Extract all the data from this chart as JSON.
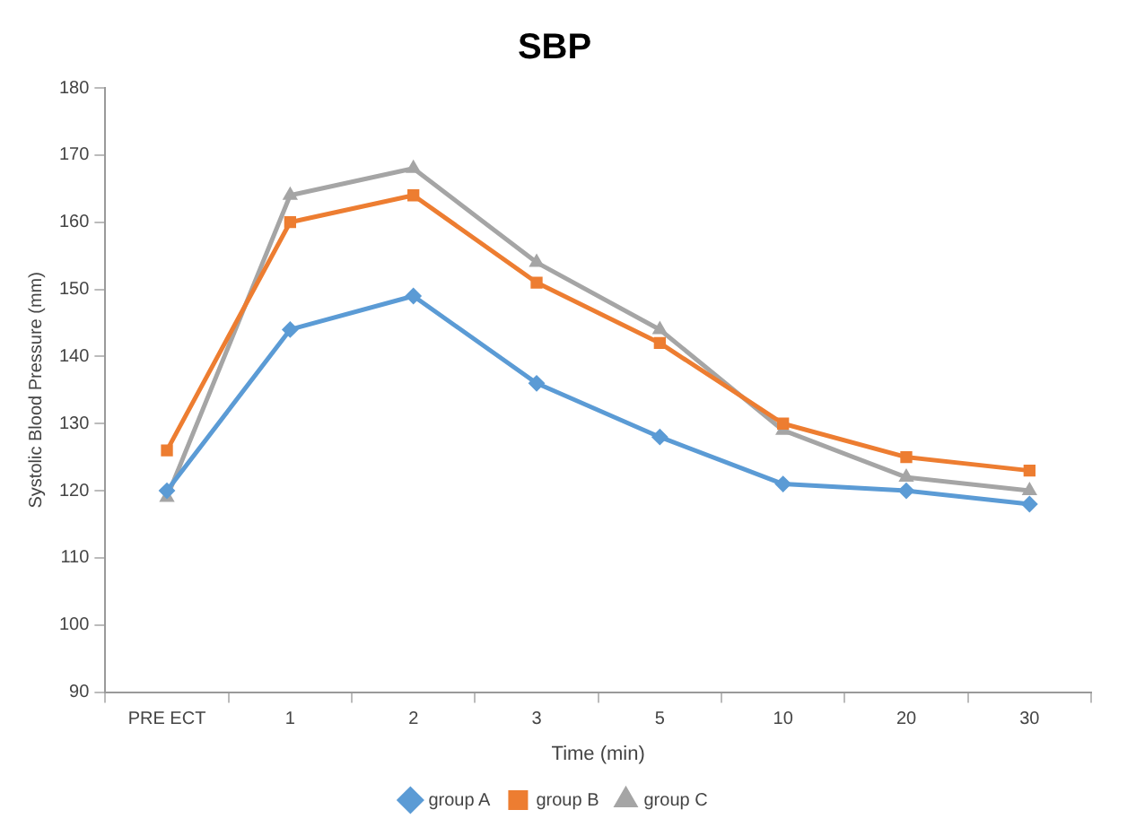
{
  "chart_data": {
    "type": "line",
    "title": "SBP",
    "xlabel": "Time (min)",
    "ylabel": "Systolic Blood Pressure (mm)",
    "categories": [
      "PRE ECT",
      "1",
      "2",
      "3",
      "5",
      "10",
      "20",
      "30"
    ],
    "series": [
      {
        "name": "group A",
        "color": "#5b9bd5",
        "marker": "diamond",
        "values": [
          120,
          144,
          149,
          136,
          128,
          121,
          120,
          118
        ]
      },
      {
        "name": "group B",
        "color": "#ed7d31",
        "marker": "square",
        "values": [
          126,
          160,
          164,
          151,
          142,
          130,
          125,
          123
        ]
      },
      {
        "name": "group C",
        "color": "#a5a5a5",
        "marker": "triangle",
        "values": [
          119,
          164,
          168,
          154,
          144,
          129,
          122,
          120
        ]
      }
    ],
    "ylim": [
      90,
      180
    ],
    "yticks": [
      90,
      100,
      110,
      120,
      130,
      140,
      150,
      160,
      170,
      180
    ],
    "grid": false,
    "legend": "bottom",
    "line_style": "solid"
  }
}
